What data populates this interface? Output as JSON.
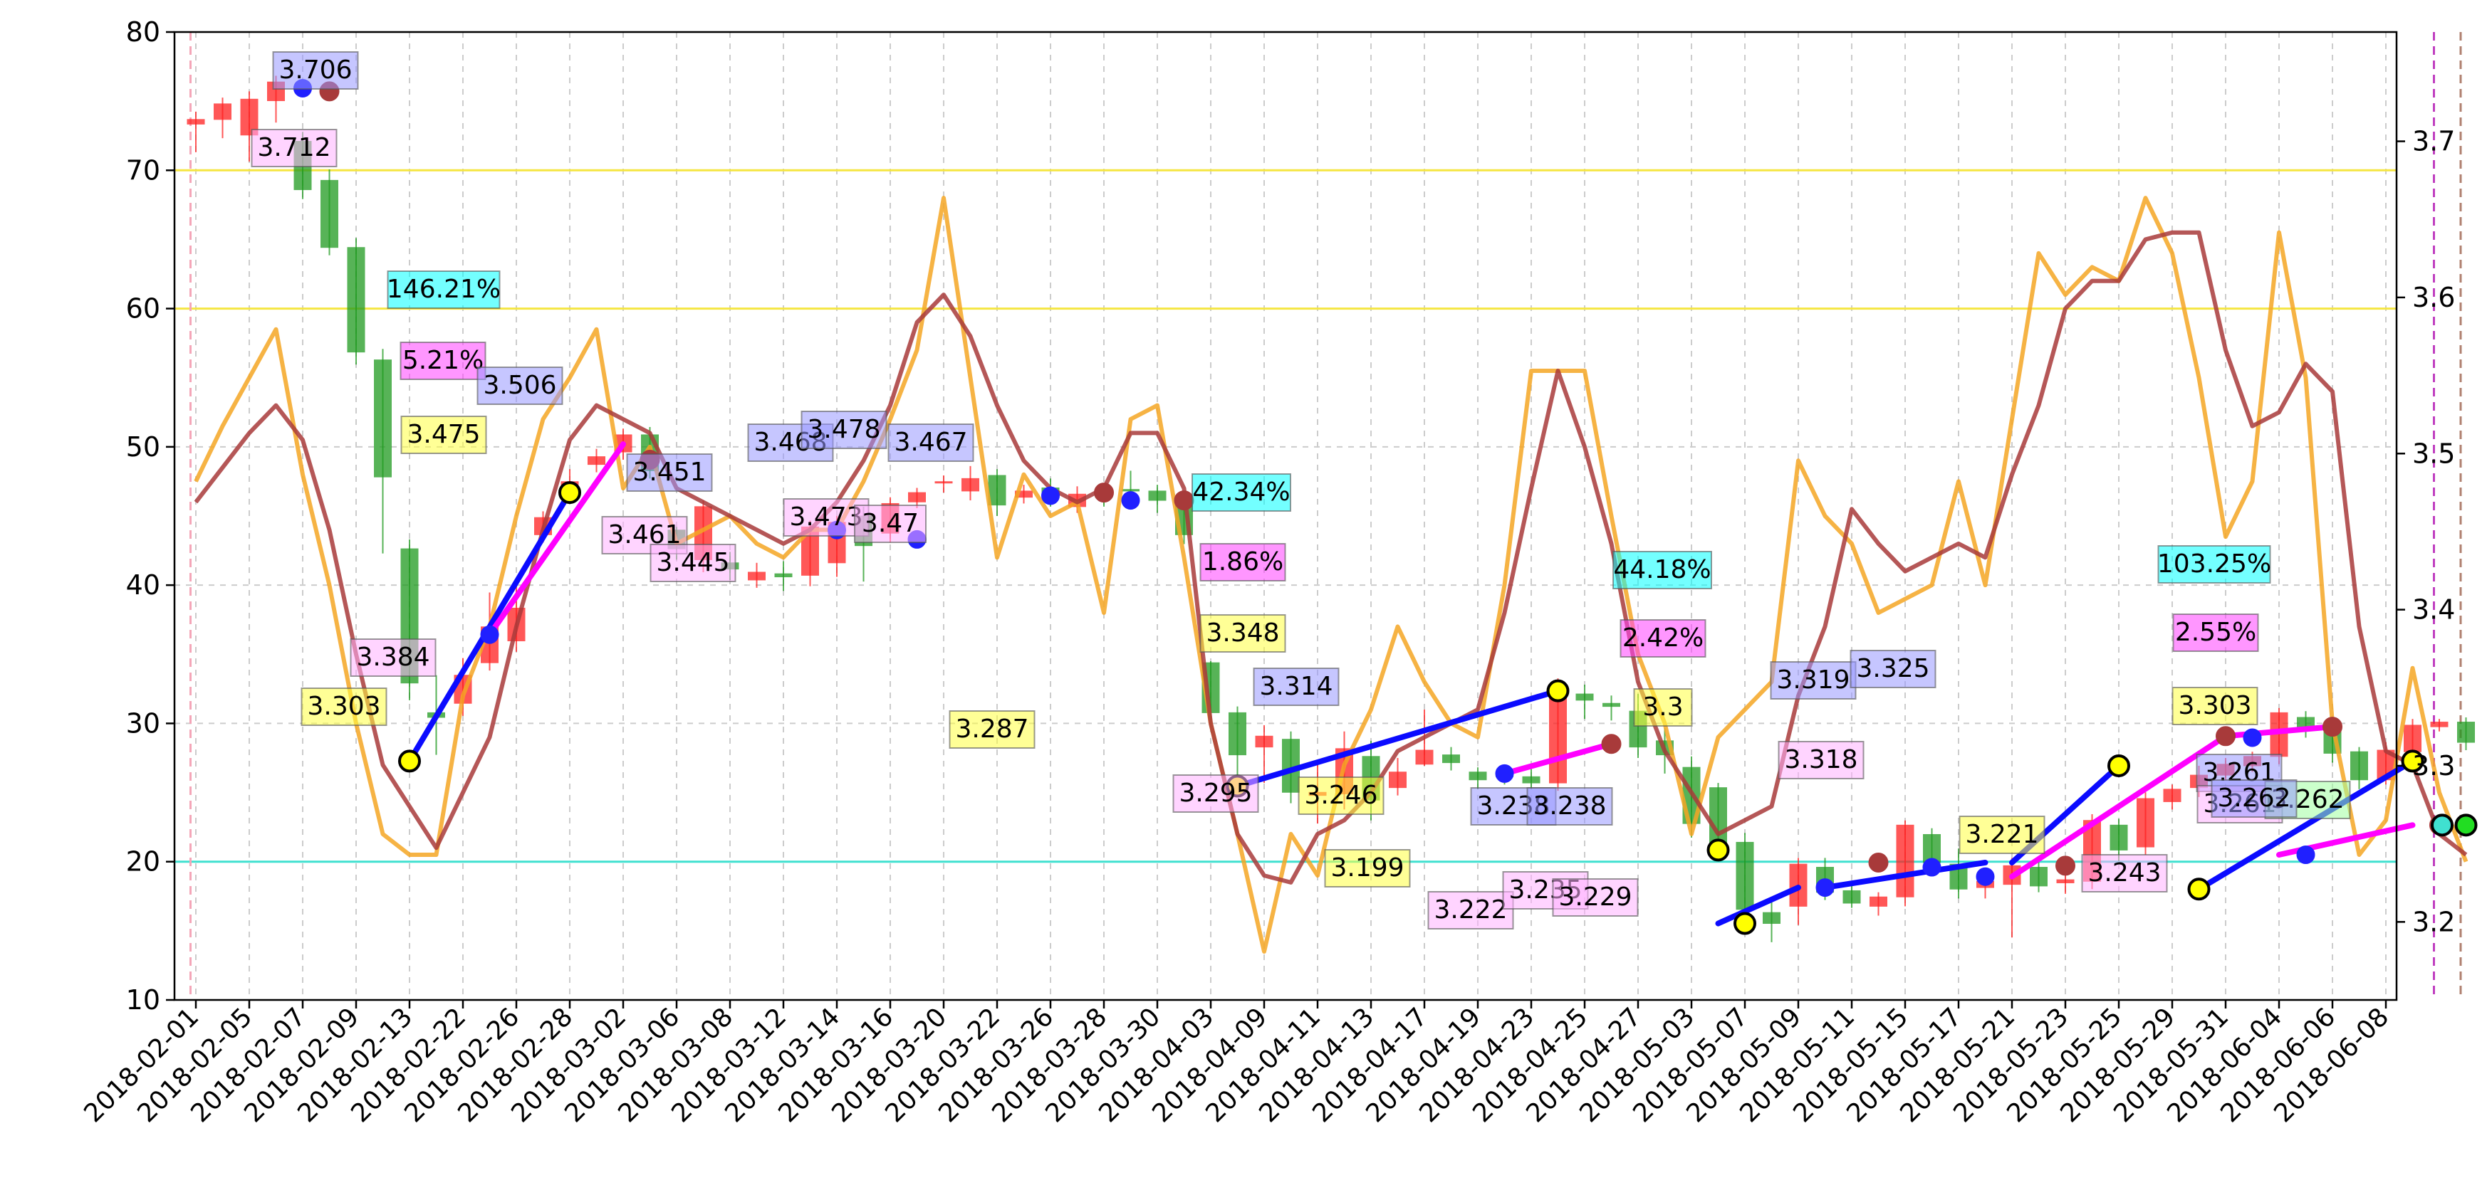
{
  "chart_data": {
    "type": "candlestick",
    "title": "",
    "xlabel": "",
    "ylabel_left": "",
    "ylabel_right": "",
    "ylim_left": [
      10,
      80
    ],
    "ylim_right": [
      3.15,
      3.77
    ],
    "yticks_left": [
      "10",
      "20",
      "30",
      "40",
      "50",
      "60",
      "70",
      "80"
    ],
    "yticks_right": [
      "3.2",
      "3.3",
      "3.4",
      "3.5",
      "3.6",
      "3.7"
    ],
    "grid": true,
    "x_labels": [
      "2018-02-01",
      "2018-02-05",
      "2018-02-07",
      "2018-02-09",
      "2018-02-13",
      "2018-02-22",
      "2018-02-26",
      "2018-02-28",
      "2018-03-02",
      "2018-03-06",
      "2018-03-08",
      "2018-03-12",
      "2018-03-14",
      "2018-03-16",
      "2018-03-20",
      "2018-03-22",
      "2018-03-26",
      "2018-03-28",
      "2018-03-30",
      "2018-04-03",
      "2018-04-09",
      "2018-04-11",
      "2018-04-13",
      "2018-04-17",
      "2018-04-19",
      "2018-04-23",
      "2018-04-25",
      "2018-04-27",
      "2018-05-03",
      "2018-05-07",
      "2018-05-09",
      "2018-05-11",
      "2018-05-15",
      "2018-05-17",
      "2018-05-21",
      "2018-05-23",
      "2018-05-25",
      "2018-05-29",
      "2018-05-31",
      "2018-06-04",
      "2018-06-06",
      "2018-06-08"
    ],
    "horizontal_lines": [
      {
        "value": 70,
        "axis": "left",
        "color": "#f5e642"
      },
      {
        "value": 60,
        "axis": "left",
        "color": "#f5e642"
      },
      {
        "value": 20,
        "axis": "left",
        "color": "#40e0d0"
      }
    ],
    "vertical_lines": [
      {
        "index": 0,
        "color": "#f4a6b8"
      },
      {
        "index": 84,
        "color": "#c040c0"
      },
      {
        "index": 85,
        "color": "#b08070"
      }
    ],
    "candles": [
      [
        3.711,
        3.714,
        3.693,
        3.719
      ],
      [
        3.714,
        3.724,
        3.702,
        3.728
      ],
      [
        3.704,
        3.727,
        3.687,
        3.732
      ],
      [
        3.726,
        3.738,
        3.712,
        3.742
      ],
      [
        3.7,
        3.669,
        3.663,
        3.706
      ],
      [
        3.675,
        3.632,
        3.627,
        3.682
      ],
      [
        3.632,
        3.565,
        3.557,
        3.638
      ],
      [
        3.56,
        3.485,
        3.436,
        3.567
      ],
      [
        3.439,
        3.353,
        3.342,
        3.445
      ],
      [
        3.334,
        3.331,
        3.307,
        3.358
      ],
      [
        3.34,
        3.358,
        3.332,
        3.369
      ],
      [
        3.366,
        3.389,
        3.361,
        3.411
      ],
      [
        3.38,
        3.401,
        3.373,
        3.417
      ],
      [
        3.448,
        3.459,
        3.443,
        3.463
      ],
      [
        3.474,
        3.482,
        3.468,
        3.49
      ],
      [
        3.493,
        3.498,
        3.488,
        3.503
      ],
      [
        3.501,
        3.512,
        3.496,
        3.516
      ],
      [
        3.512,
        3.489,
        3.484,
        3.517
      ],
      [
        3.451,
        3.439,
        3.432,
        3.453
      ],
      [
        3.432,
        3.466,
        3.424,
        3.47
      ],
      [
        3.43,
        3.426,
        3.419,
        3.437
      ],
      [
        3.419,
        3.424,
        3.414,
        3.43
      ],
      [
        3.423,
        3.421,
        3.412,
        3.431
      ],
      [
        3.422,
        3.453,
        3.415,
        3.457
      ],
      [
        3.43,
        3.456,
        3.421,
        3.46
      ],
      [
        3.46,
        3.441,
        3.418,
        3.466
      ],
      [
        3.449,
        3.468,
        3.443,
        3.472
      ],
      [
        3.469,
        3.475,
        3.465,
        3.478
      ],
      [
        3.482,
        3.482,
        3.475,
        3.486
      ],
      [
        3.476,
        3.484,
        3.47,
        3.492
      ],
      [
        3.486,
        3.467,
        3.46,
        3.49
      ],
      [
        3.472,
        3.476,
        3.468,
        3.48
      ],
      [
        3.478,
        3.473,
        3.466,
        3.484
      ],
      [
        3.466,
        3.474,
        3.462,
        3.479
      ],
      [
        3.475,
        3.472,
        3.466,
        3.48
      ],
      [
        3.477,
        3.476,
        3.471,
        3.489
      ],
      [
        3.476,
        3.47,
        3.462,
        3.48
      ],
      [
        3.468,
        3.448,
        3.442,
        3.471
      ],
      [
        3.366,
        3.334,
        3.323,
        3.367
      ],
      [
        3.334,
        3.307,
        3.289,
        3.338
      ],
      [
        3.312,
        3.319,
        3.289,
        3.326
      ],
      [
        3.317,
        3.283,
        3.276,
        3.322
      ],
      [
        3.281,
        3.283,
        3.263,
        3.302
      ],
      [
        3.282,
        3.311,
        3.272,
        3.322
      ],
      [
        3.306,
        3.278,
        3.265,
        3.316
      ],
      [
        3.286,
        3.296,
        3.281,
        3.305
      ],
      [
        3.301,
        3.31,
        3.3,
        3.336
      ],
      [
        3.307,
        3.302,
        3.297,
        3.312
      ],
      [
        3.296,
        3.291,
        3.285,
        3.299
      ],
      [
        3.294,
        3.293,
        3.288,
        3.299
      ],
      [
        3.293,
        3.289,
        3.285,
        3.298
      ],
      [
        3.289,
        3.351,
        3.284,
        3.356
      ],
      [
        3.346,
        3.342,
        3.33,
        3.352
      ],
      [
        3.34,
        3.338,
        3.329,
        3.345
      ],
      [
        3.335,
        3.312,
        3.305,
        3.346
      ],
      [
        3.316,
        3.307,
        3.295,
        3.324
      ],
      [
        3.299,
        3.263,
        3.254,
        3.306
      ],
      [
        3.286,
        3.249,
        3.242,
        3.289
      ],
      [
        3.251,
        3.208,
        3.201,
        3.257
      ],
      [
        3.206,
        3.199,
        3.187,
        3.215
      ],
      [
        3.21,
        3.237,
        3.198,
        3.241
      ],
      [
        3.235,
        3.219,
        3.214,
        3.241
      ],
      [
        3.22,
        3.212,
        3.209,
        3.225
      ],
      [
        3.21,
        3.216,
        3.204,
        3.219
      ],
      [
        3.216,
        3.262,
        3.21,
        3.265
      ],
      [
        3.256,
        3.238,
        3.23,
        3.26
      ],
      [
        3.237,
        3.221,
        3.215,
        3.247
      ],
      [
        3.222,
        3.226,
        3.215,
        3.23
      ],
      [
        3.224,
        3.236,
        3.19,
        3.241
      ],
      [
        3.235,
        3.223,
        3.219,
        3.239
      ],
      [
        3.225,
        3.227,
        3.218,
        3.231
      ],
      [
        3.226,
        3.265,
        3.221,
        3.269
      ],
      [
        3.262,
        3.246,
        3.239,
        3.266
      ],
      [
        3.248,
        3.279,
        3.243,
        3.283
      ],
      [
        3.277,
        3.285,
        3.272,
        3.288
      ],
      [
        3.286,
        3.294,
        3.28,
        3.3
      ],
      [
        3.294,
        3.301,
        3.291,
        3.305
      ],
      [
        3.3,
        3.306,
        3.296,
        3.309
      ],
      [
        3.306,
        3.334,
        3.301,
        3.337
      ],
      [
        3.331,
        3.323,
        3.318,
        3.335
      ],
      [
        3.325,
        3.308,
        3.302,
        3.329
      ],
      [
        3.309,
        3.291,
        3.285,
        3.312
      ],
      [
        3.291,
        3.31,
        3.288,
        3.315
      ],
      [
        3.309,
        3.326,
        3.304,
        3.33
      ],
      [
        3.325,
        3.328,
        3.322,
        3.33
      ],
      [
        3.328,
        3.315,
        3.31,
        3.331
      ]
    ],
    "line_orange": [
      47.5,
      51.5,
      55,
      58.5,
      48,
      40,
      30,
      22,
      20.5,
      20.5,
      32,
      37,
      45,
      52,
      55,
      58.5,
      47,
      50,
      43,
      44,
      45,
      43,
      42,
      44,
      44,
      47.5,
      52,
      57,
      68,
      55,
      42,
      48,
      45,
      46,
      38,
      52,
      53,
      42,
      30,
      22,
      13.5,
      22,
      19,
      27,
      31,
      37,
      33,
      30,
      29,
      40,
      55.5,
      55.5,
      55.5,
      45,
      35,
      30,
      22,
      29,
      31,
      33,
      49,
      45,
      43,
      38,
      39,
      40,
      47.5,
      40,
      52,
      64,
      61,
      63,
      62,
      68,
      64,
      55,
      43.5,
      47.5,
      65.5,
      55,
      30,
      20.5,
      23,
      34,
      25,
      20
    ],
    "line_brown": [
      46,
      48.5,
      51,
      53,
      50.5,
      44,
      35,
      27,
      24,
      21,
      25,
      29,
      37,
      44,
      50.5,
      53,
      52,
      51,
      47,
      46,
      45,
      44,
      43,
      44,
      46,
      49,
      53,
      59,
      61,
      58,
      53,
      49,
      47,
      46,
      47,
      51,
      51,
      47,
      30,
      22,
      19,
      18.5,
      22,
      23,
      25,
      28,
      29,
      30,
      31,
      38,
      47,
      55.5,
      50,
      43,
      33,
      28,
      25,
      22,
      23,
      24,
      32,
      37,
      45.5,
      43,
      41,
      42,
      43,
      42,
      48,
      53,
      60,
      62,
      62,
      65,
      65.5,
      65.5,
      57,
      51.5,
      52.5,
      56,
      54,
      37,
      28,
      27,
      22,
      20.5
    ],
    "pivots_high": [
      {
        "i": 4,
        "label": "3.706"
      },
      {
        "i": 13,
        "label": "3.384"
      },
      {
        "i": 23,
        "label": "3.451"
      },
      {
        "i": 30,
        "label": "3.468"
      },
      {
        "i": 32,
        "label": "3.478"
      },
      {
        "i": 36,
        "label": "3.467"
      },
      {
        "i": 51,
        "label": "3.314"
      },
      {
        "i": 64,
        "label": "3.238"
      },
      {
        "i": 68,
        "label": "3.238"
      },
      {
        "i": 76,
        "label": "3.319"
      },
      {
        "i": 80,
        "label": "3.325"
      },
      {
        "i": 79,
        "label": "3.261"
      }
    ],
    "annotations_yellow": [
      "3.303",
      "3.475",
      "3.287",
      "3.348",
      "3.246",
      "3.199",
      "3.3",
      "3.221",
      "3.303"
    ],
    "annotations_pink": [
      "3.712",
      "3.384",
      "3.461",
      "3.445",
      "3.473",
      "3.47",
      "3.295",
      "3.222",
      "3.235",
      "3.229",
      "3.318",
      "3.243"
    ],
    "annotations_blue": [
      "3.706",
      "3.506",
      "3.451",
      "3.468",
      "3.478",
      "3.467",
      "3.314",
      "3.238",
      "3.238",
      "3.319",
      "3.325",
      "3.261",
      "3.262"
    ],
    "annotations_green": [
      "3.262"
    ],
    "annotations_lastpink": [
      "3.261"
    ],
    "pct_cyan": [
      "146.21%",
      "42.34%",
      "44.18%",
      "103.25%"
    ],
    "pct_magenta": [
      "5.21%",
      "1.86%",
      "2.42%",
      "2.55%"
    ]
  }
}
